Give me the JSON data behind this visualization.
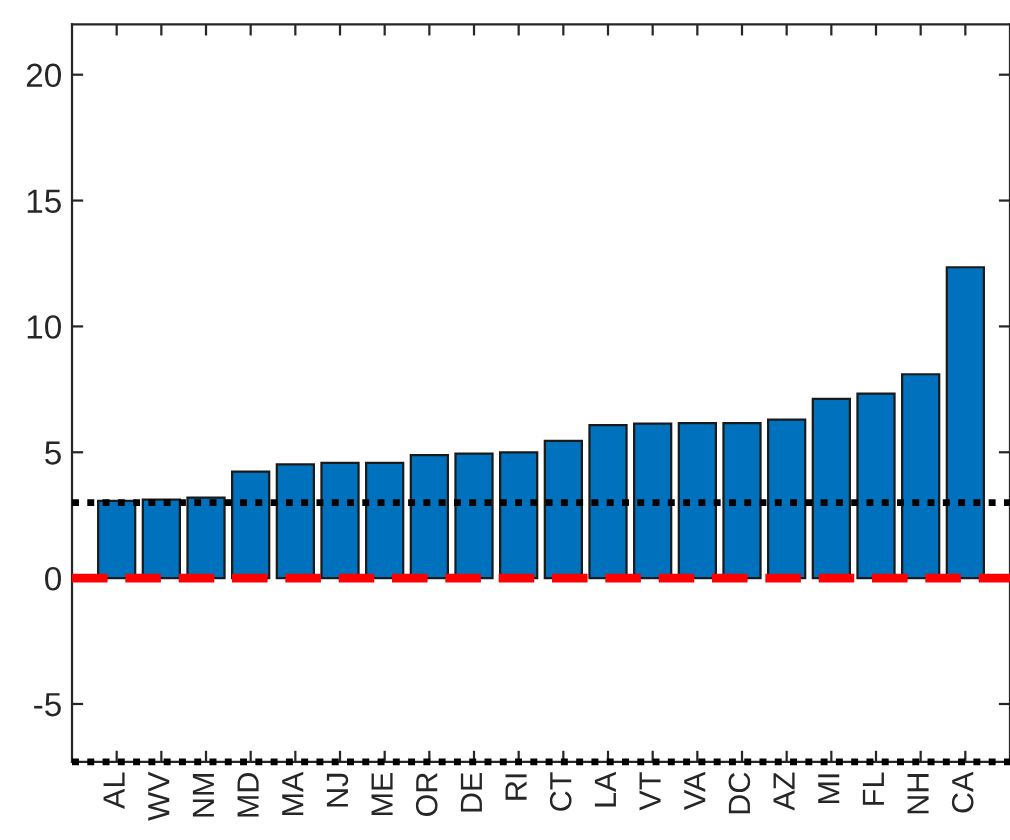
{
  "chart_data": {
    "type": "bar",
    "categories": [
      "AL",
      "WV",
      "NM",
      "MD",
      "MA",
      "NJ",
      "ME",
      "OR",
      "DE",
      "RI",
      "CT",
      "LA",
      "VT",
      "VA",
      "DC",
      "AZ",
      "MI",
      "FL",
      "NH",
      "CA"
    ],
    "values": [
      3.07,
      3.12,
      3.2,
      4.23,
      4.52,
      4.58,
      4.58,
      4.89,
      4.95,
      5.0,
      5.45,
      6.08,
      6.14,
      6.16,
      6.16,
      6.3,
      7.12,
      7.33,
      8.1,
      12.35
    ],
    "color": "#0072bd",
    "ylim": [
      -7.3,
      22
    ],
    "yticks": [
      -5,
      0,
      5,
      10,
      15,
      20
    ],
    "ref_lines": [
      {
        "axis": "y",
        "value": 3,
        "color": "#000000",
        "line_style": "dotted"
      },
      {
        "axis": "y",
        "value": -7.3,
        "color": "#000000",
        "line_style": "dotted"
      },
      {
        "axis": "y",
        "value": 0,
        "color": "#ff0000",
        "line_style": "dashed"
      }
    ],
    "grid": false,
    "legend": false
  }
}
